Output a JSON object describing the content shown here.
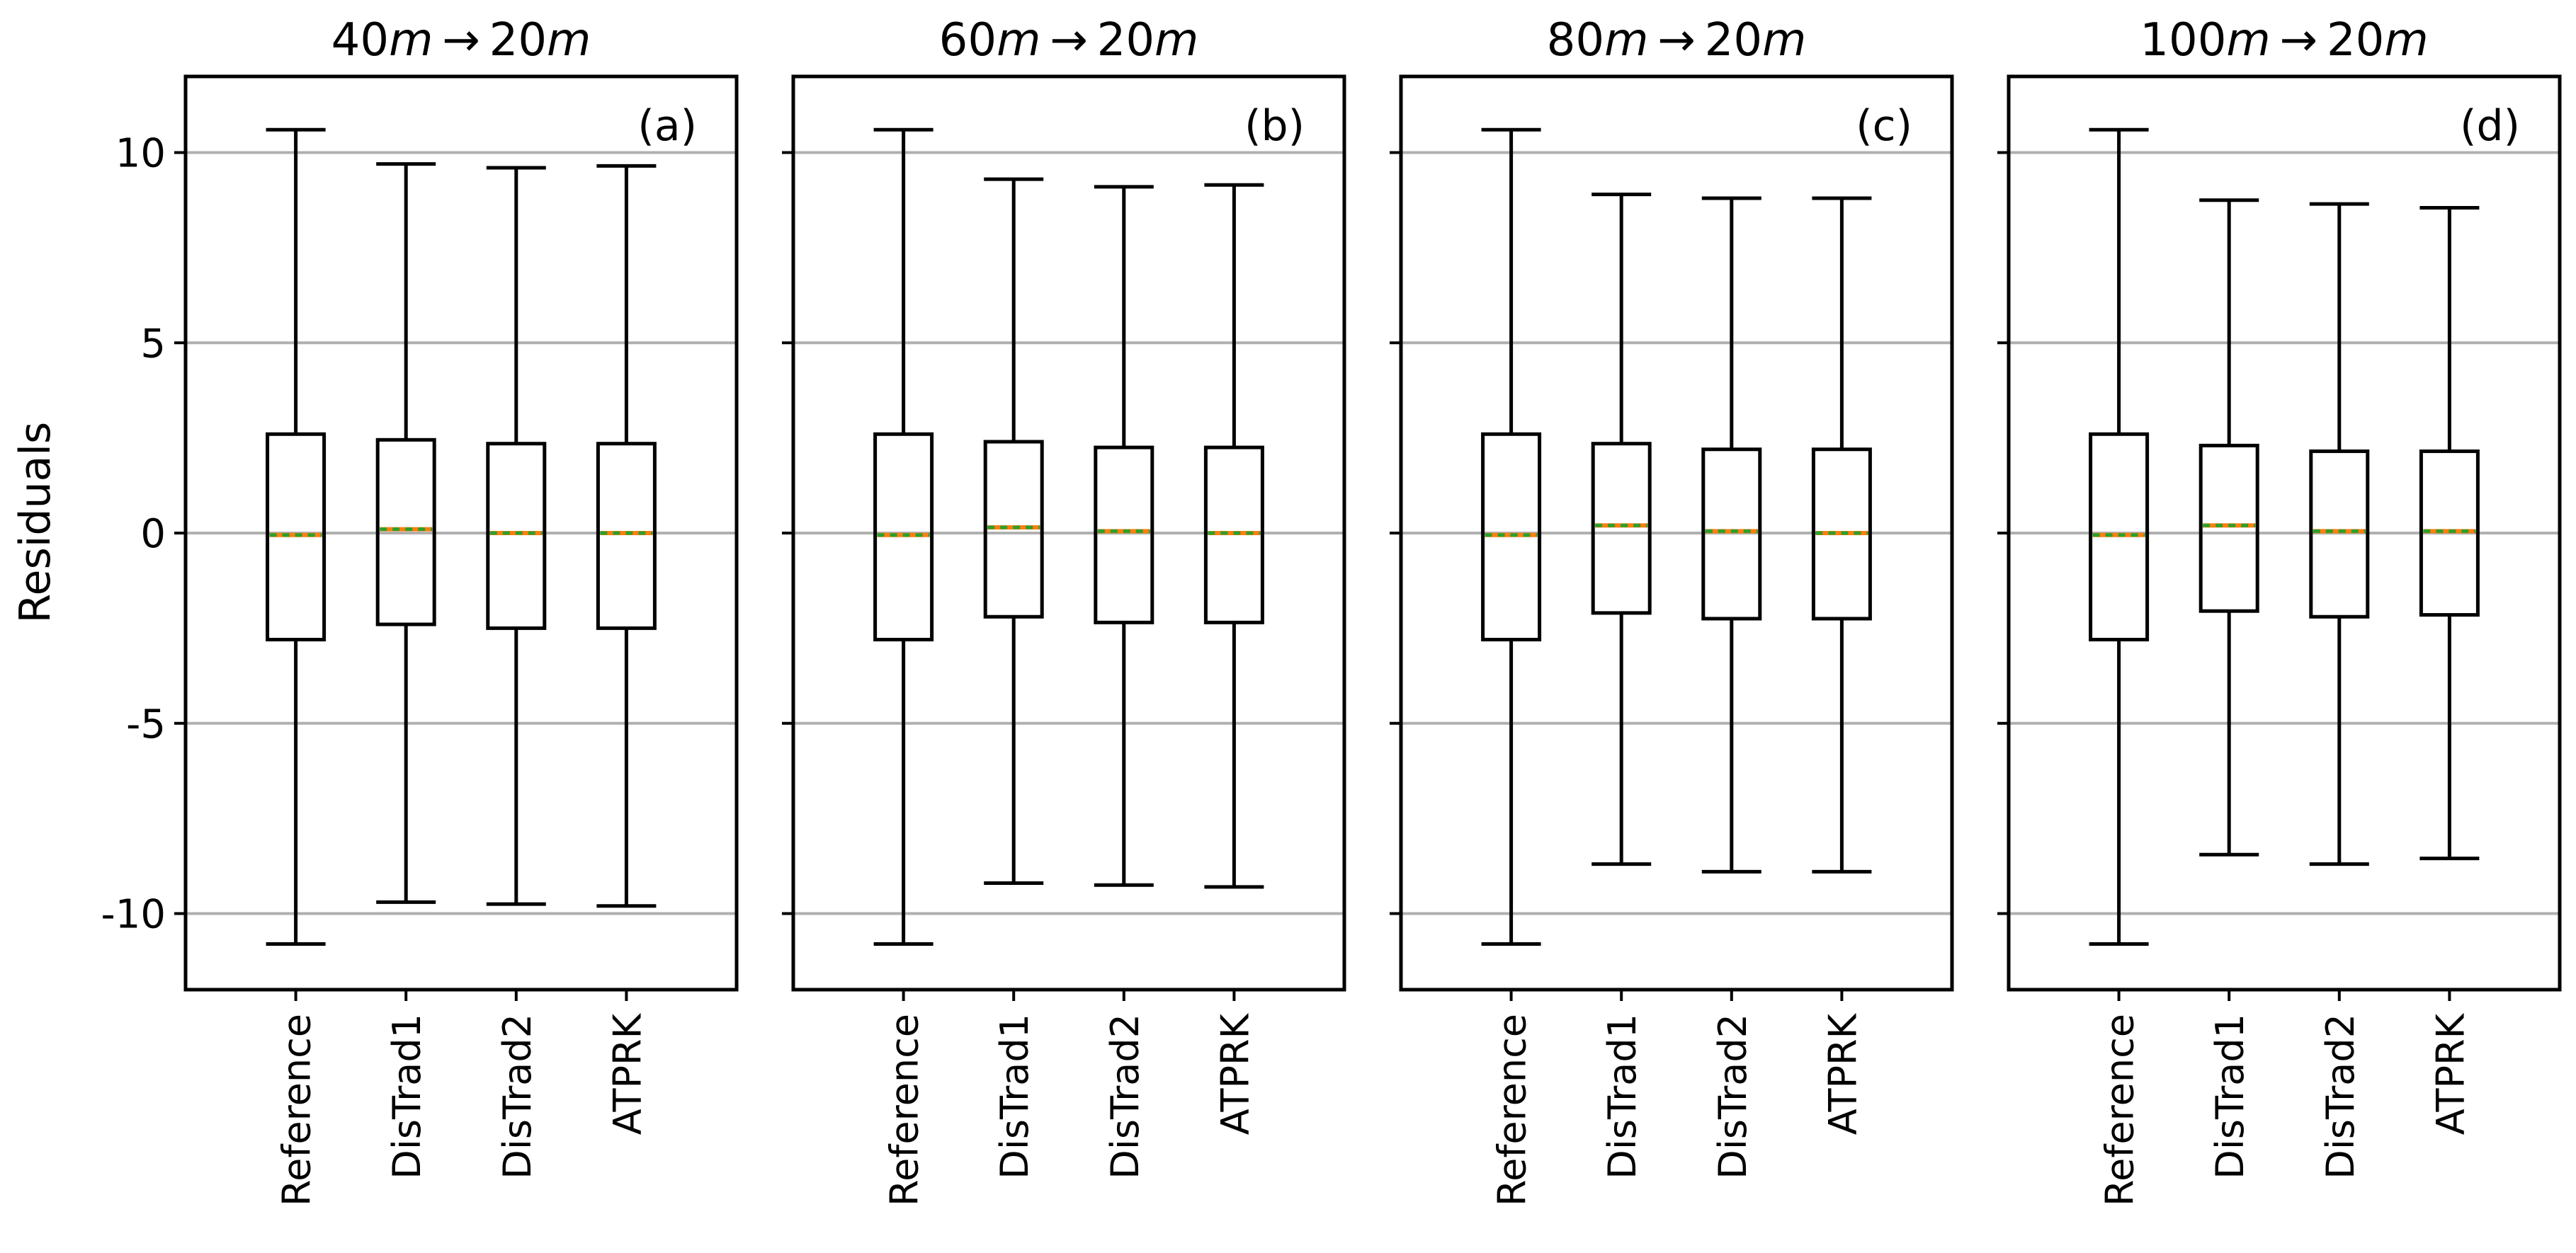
{
  "ylabel": "Residuals",
  "yticks": [
    {
      "value": 10,
      "label": "10"
    },
    {
      "value": 5,
      "label": "5"
    },
    {
      "value": 0,
      "label": "0"
    },
    {
      "value": -5,
      "label": "-5"
    },
    {
      "value": -10,
      "label": "-10"
    }
  ],
  "colors": {
    "box": "#000000",
    "grid": "#b0b0b0",
    "median": "#ff7f0e",
    "mean": "#2ca02c"
  },
  "chart_data": [
    {
      "type": "box",
      "title": {
        "from": "40",
        "to": "20",
        "unit": "m",
        "arrow": "→"
      },
      "panel_label": "(a)",
      "ylim": [
        -12,
        12
      ],
      "grid": "y",
      "categories": [
        "Reference",
        "DisTrad1",
        "DisTrad2",
        "ATPRK"
      ],
      "boxes": [
        {
          "whislo": -10.8,
          "q1": -2.8,
          "med": -0.05,
          "mean": -0.05,
          "q3": 2.6,
          "whishi": 10.6
        },
        {
          "whislo": -9.7,
          "q1": -2.4,
          "med": 0.1,
          "mean": 0.1,
          "q3": 2.45,
          "whishi": 9.7
        },
        {
          "whislo": -9.75,
          "q1": -2.5,
          "med": 0.0,
          "mean": 0.0,
          "q3": 2.35,
          "whishi": 9.6
        },
        {
          "whislo": -9.8,
          "q1": -2.5,
          "med": 0.0,
          "mean": 0.0,
          "q3": 2.35,
          "whishi": 9.65
        }
      ]
    },
    {
      "type": "box",
      "title": {
        "from": "60",
        "to": "20",
        "unit": "m",
        "arrow": "→"
      },
      "panel_label": "(b)",
      "ylim": [
        -12,
        12
      ],
      "grid": "y",
      "categories": [
        "Reference",
        "DisTrad1",
        "DisTrad2",
        "ATPRK"
      ],
      "boxes": [
        {
          "whislo": -10.8,
          "q1": -2.8,
          "med": -0.05,
          "mean": -0.05,
          "q3": 2.6,
          "whishi": 10.6
        },
        {
          "whislo": -9.2,
          "q1": -2.2,
          "med": 0.15,
          "mean": 0.15,
          "q3": 2.4,
          "whishi": 9.3
        },
        {
          "whislo": -9.25,
          "q1": -2.35,
          "med": 0.05,
          "mean": 0.05,
          "q3": 2.25,
          "whishi": 9.1
        },
        {
          "whislo": -9.3,
          "q1": -2.35,
          "med": 0.0,
          "mean": 0.0,
          "q3": 2.25,
          "whishi": 9.15
        }
      ]
    },
    {
      "type": "box",
      "title": {
        "from": "80",
        "to": "20",
        "unit": "m",
        "arrow": "→"
      },
      "panel_label": "(c)",
      "ylim": [
        -12,
        12
      ],
      "grid": "y",
      "categories": [
        "Reference",
        "DisTrad1",
        "DisTrad2",
        "ATPRK"
      ],
      "boxes": [
        {
          "whislo": -10.8,
          "q1": -2.8,
          "med": -0.05,
          "mean": -0.05,
          "q3": 2.6,
          "whishi": 10.6
        },
        {
          "whislo": -8.7,
          "q1": -2.1,
          "med": 0.2,
          "mean": 0.2,
          "q3": 2.35,
          "whishi": 8.9
        },
        {
          "whislo": -8.9,
          "q1": -2.25,
          "med": 0.05,
          "mean": 0.05,
          "q3": 2.2,
          "whishi": 8.8
        },
        {
          "whislo": -8.9,
          "q1": -2.25,
          "med": 0.0,
          "mean": 0.0,
          "q3": 2.2,
          "whishi": 8.8
        }
      ]
    },
    {
      "type": "box",
      "title": {
        "from": "100",
        "to": "20",
        "unit": "m",
        "arrow": "→"
      },
      "panel_label": "(d)",
      "ylim": [
        -12,
        12
      ],
      "grid": "y",
      "categories": [
        "Reference",
        "DisTrad1",
        "DisTrad2",
        "ATPRK"
      ],
      "boxes": [
        {
          "whislo": -10.8,
          "q1": -2.8,
          "med": -0.05,
          "mean": -0.05,
          "q3": 2.6,
          "whishi": 10.6
        },
        {
          "whislo": -8.45,
          "q1": -2.05,
          "med": 0.2,
          "mean": 0.2,
          "q3": 2.3,
          "whishi": 8.75
        },
        {
          "whislo": -8.7,
          "q1": -2.2,
          "med": 0.05,
          "mean": 0.05,
          "q3": 2.15,
          "whishi": 8.65
        },
        {
          "whislo": -8.55,
          "q1": -2.15,
          "med": 0.05,
          "mean": 0.05,
          "q3": 2.15,
          "whishi": 8.55
        }
      ]
    }
  ]
}
